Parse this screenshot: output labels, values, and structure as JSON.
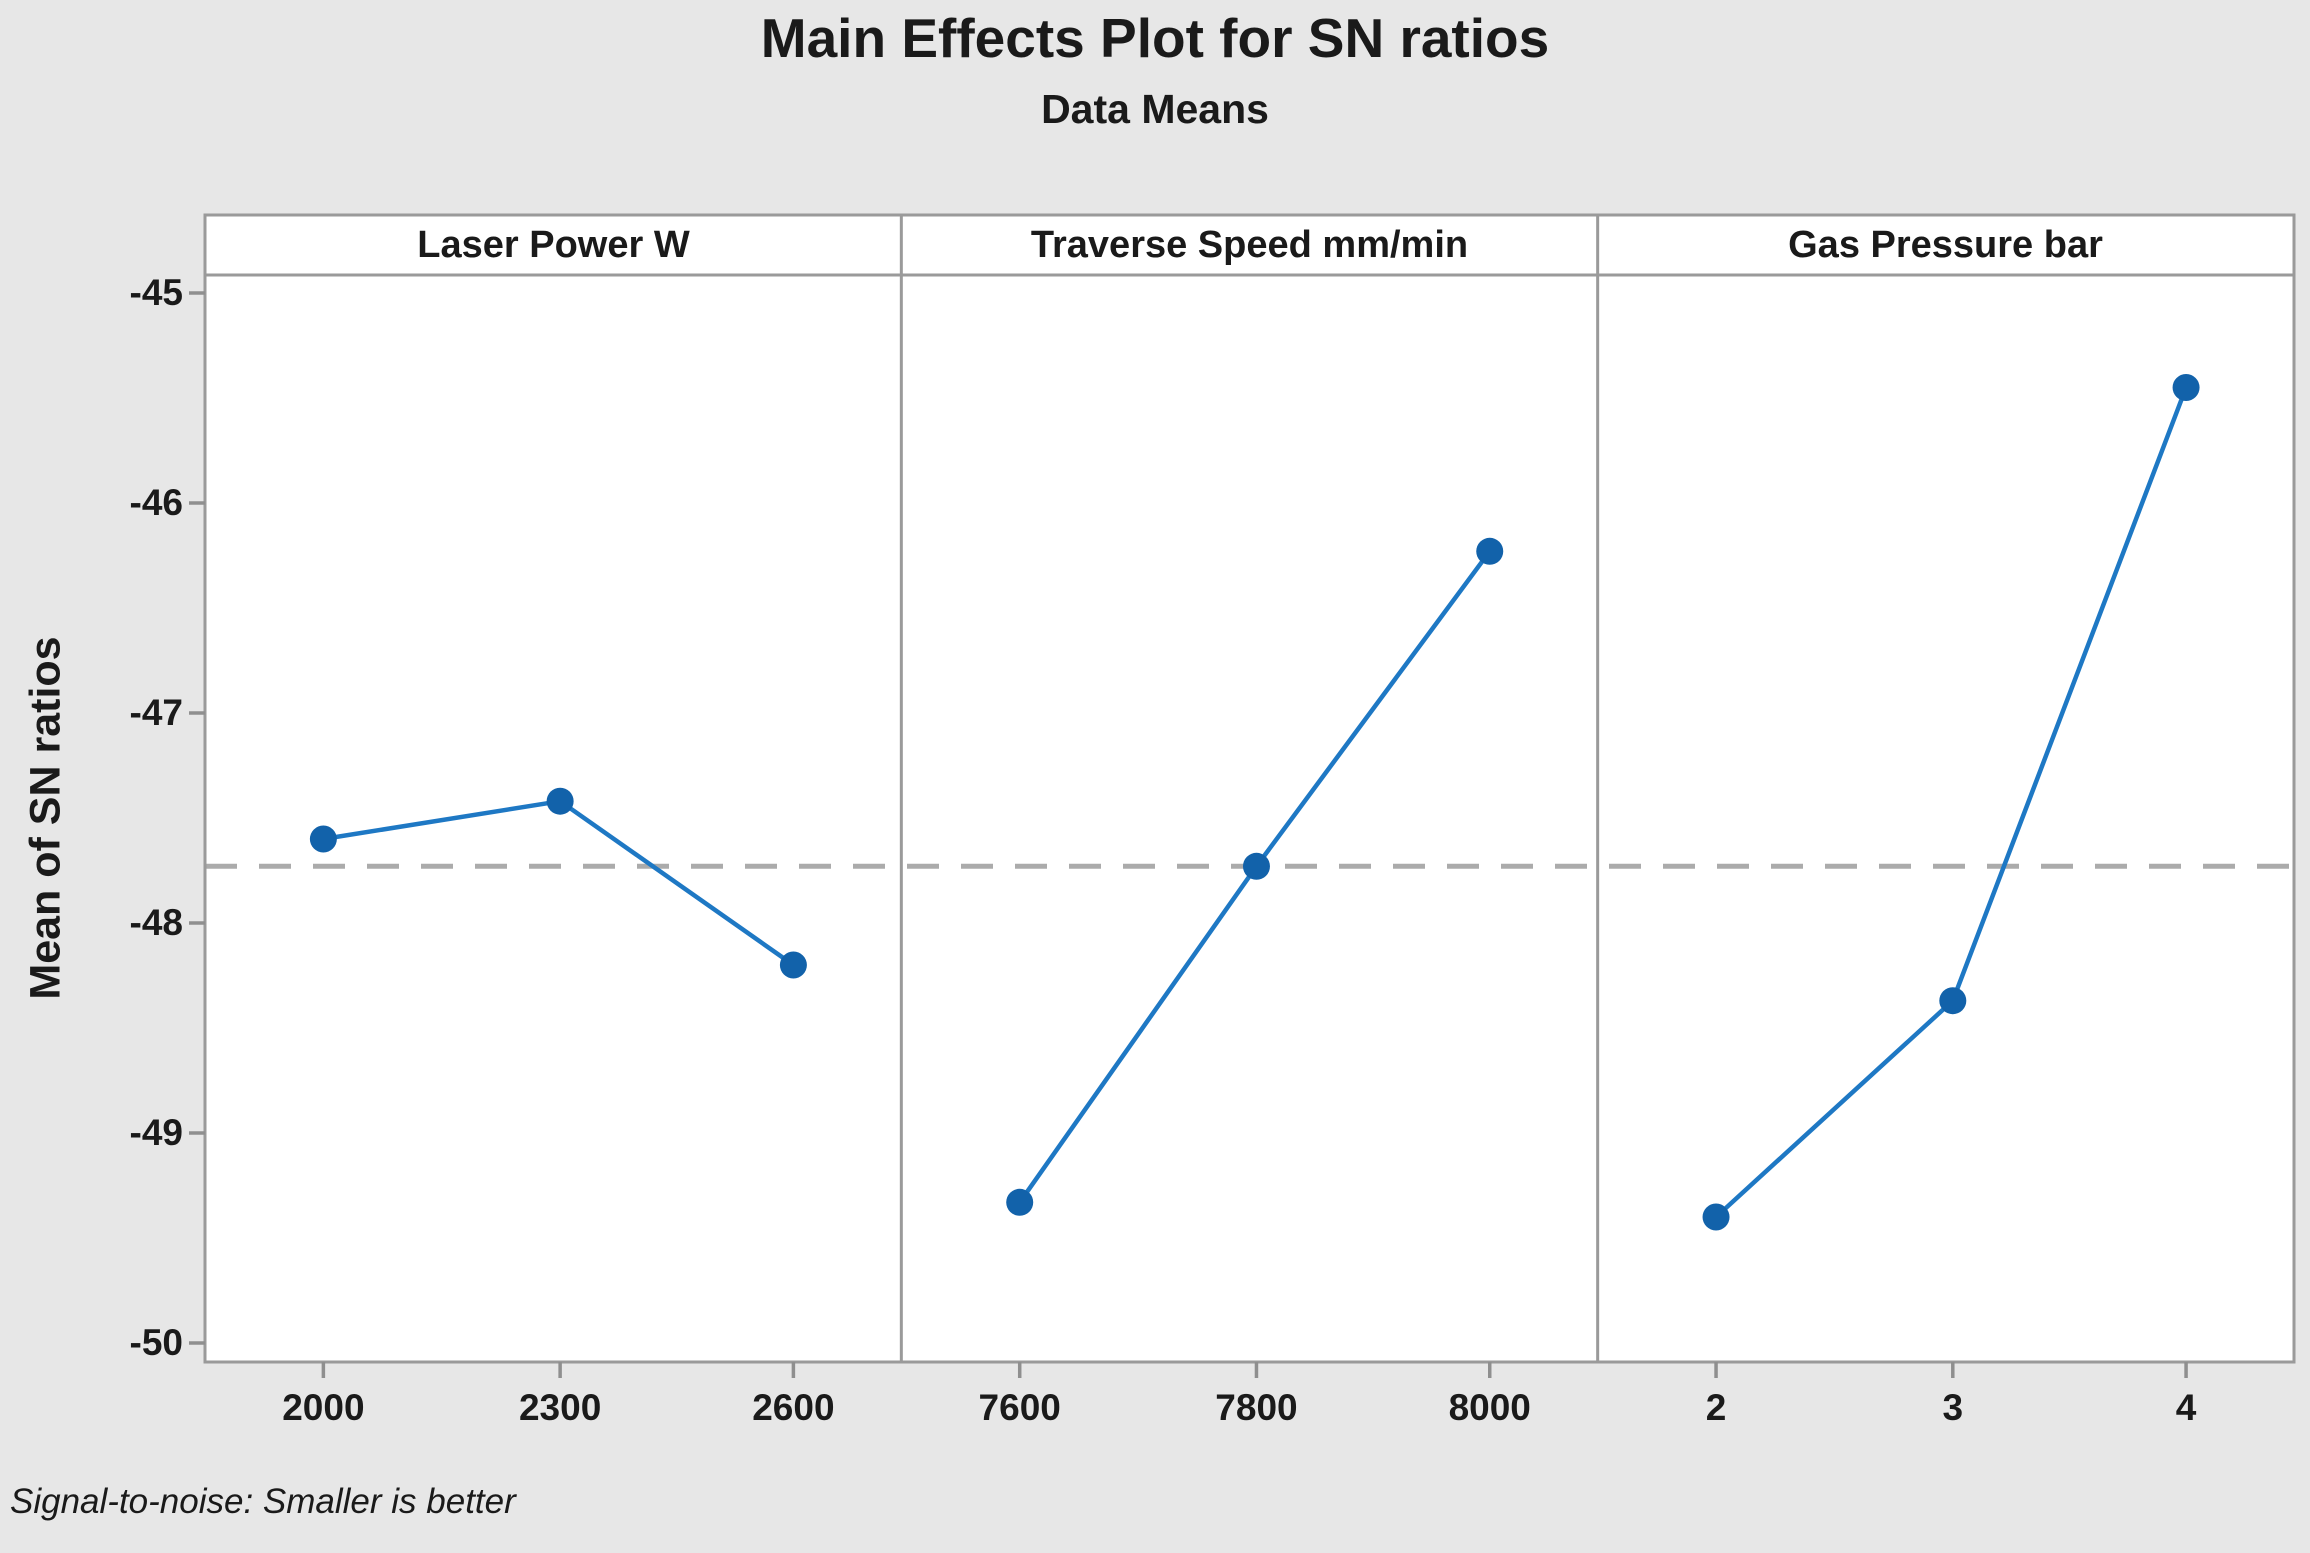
{
  "chart_data": {
    "type": "line",
    "title": "Main Effects Plot for SN ratios",
    "subtitle": "Data Means",
    "ylabel": "Mean of SN ratios",
    "footnote": "Signal-to-noise: Smaller is better",
    "ylim": [
      -50,
      -45
    ],
    "y_ticks": [
      -45,
      -46,
      -47,
      -48,
      -49,
      -50
    ],
    "reference_line_mean": -47.73,
    "grid": "off",
    "legend": "none",
    "panels": [
      {
        "label": "Laser Power W",
        "categories": [
          "2000",
          "2300",
          "2600"
        ],
        "values": [
          -47.6,
          -47.42,
          -48.2
        ]
      },
      {
        "label": "Traverse Speed mm/min",
        "categories": [
          "7600",
          "7800",
          "8000"
        ],
        "values": [
          -49.33,
          -47.73,
          -46.23
        ]
      },
      {
        "label": "Gas Pressure bar",
        "categories": [
          "2",
          "3",
          "4"
        ],
        "values": [
          -49.4,
          -48.37,
          -45.45
        ]
      }
    ],
    "colors": {
      "background": "#e7e7e7",
      "plot_background": "#ffffff",
      "frame": "#9a9a9a",
      "tick": "#8f8f8f",
      "text": "#1a1a1a",
      "series_line": "#1e78c4",
      "series_marker": "#1262aa",
      "reference_line": "#ababab"
    }
  }
}
